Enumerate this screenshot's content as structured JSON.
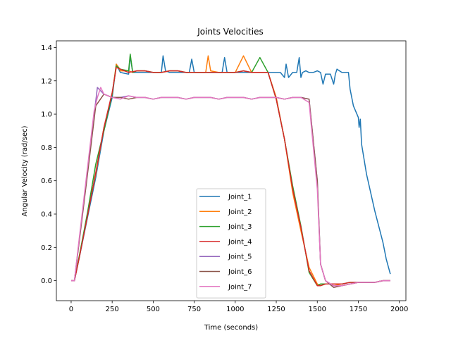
{
  "chart_data": {
    "type": "line",
    "title": "Joints Velocities",
    "xlabel": "Time (seconds)",
    "ylabel": "Angular Velocity (rad/sec)",
    "xlim": [
      -90,
      2040
    ],
    "ylim": [
      -0.12,
      1.44
    ],
    "xticks": [
      0,
      250,
      500,
      750,
      1000,
      1250,
      1500,
      1750,
      2000
    ],
    "yticks": [
      0.0,
      0.2,
      0.4,
      0.6,
      0.8,
      1.0,
      1.2,
      1.4
    ],
    "grid": false,
    "legend_position": "lower-center",
    "series": [
      {
        "name": "Joint_1",
        "color": "#1f77b4",
        "x": [
          0,
          20,
          50,
          100,
          150,
          200,
          250,
          275,
          300,
          350,
          360,
          375,
          400,
          450,
          500,
          550,
          560,
          575,
          600,
          650,
          700,
          720,
          735,
          750,
          800,
          850,
          900,
          920,
          935,
          950,
          1000,
          1050,
          1100,
          1150,
          1200,
          1250,
          1275,
          1300,
          1310,
          1325,
          1350,
          1375,
          1390,
          1400,
          1410,
          1430,
          1450,
          1475,
          1500,
          1520,
          1535,
          1550,
          1580,
          1600,
          1610,
          1620,
          1650,
          1690,
          1700,
          1720,
          1750,
          1755,
          1762,
          1770,
          1800,
          1850,
          1900,
          1920,
          1945
        ],
        "y": [
          0.0,
          0.0,
          0.14,
          0.38,
          0.62,
          0.9,
          1.1,
          1.3,
          1.25,
          1.24,
          1.35,
          1.25,
          1.25,
          1.25,
          1.25,
          1.25,
          1.35,
          1.26,
          1.25,
          1.25,
          1.25,
          1.25,
          1.33,
          1.25,
          1.25,
          1.25,
          1.25,
          1.25,
          1.34,
          1.25,
          1.25,
          1.25,
          1.25,
          1.25,
          1.25,
          1.25,
          1.25,
          1.22,
          1.3,
          1.22,
          1.25,
          1.25,
          1.34,
          1.22,
          1.25,
          1.26,
          1.25,
          1.25,
          1.26,
          1.25,
          1.18,
          1.24,
          1.24,
          1.18,
          1.24,
          1.27,
          1.25,
          1.25,
          1.15,
          1.05,
          0.98,
          0.92,
          0.97,
          0.82,
          0.64,
          0.42,
          0.23,
          0.13,
          0.04
        ]
      },
      {
        "name": "Joint_2",
        "color": "#ff7f0e",
        "x": [
          0,
          20,
          50,
          100,
          150,
          200,
          250,
          275,
          290,
          300,
          350,
          375,
          400,
          450,
          500,
          550,
          600,
          650,
          700,
          750,
          800,
          820,
          835,
          850,
          900,
          950,
          1000,
          1050,
          1100,
          1150,
          1200,
          1250,
          1300,
          1350,
          1400,
          1450,
          1500,
          1520,
          1550,
          1600,
          1650,
          1700,
          1750,
          1800,
          1850,
          1900,
          1945
        ],
        "y": [
          0.0,
          0.0,
          0.15,
          0.4,
          0.64,
          0.92,
          1.12,
          1.3,
          1.28,
          1.26,
          1.26,
          1.25,
          1.26,
          1.26,
          1.25,
          1.25,
          1.26,
          1.26,
          1.25,
          1.25,
          1.25,
          1.25,
          1.35,
          1.26,
          1.25,
          1.25,
          1.25,
          1.35,
          1.25,
          1.25,
          1.25,
          1.1,
          0.85,
          0.53,
          0.3,
          0.08,
          -0.02,
          -0.03,
          -0.02,
          -0.02,
          -0.03,
          -0.02,
          -0.01,
          -0.01,
          -0.01,
          0.0,
          0.0
        ]
      },
      {
        "name": "Joint_3",
        "color": "#2ca02c",
        "x": [
          0,
          20,
          50,
          100,
          150,
          200,
          250,
          275,
          300,
          350,
          360,
          375,
          400,
          450,
          500,
          550,
          600,
          650,
          700,
          750,
          800,
          850,
          900,
          950,
          1000,
          1050,
          1100,
          1150,
          1200,
          1250,
          1300,
          1350,
          1400,
          1450,
          1500,
          1520,
          1550,
          1600,
          1650,
          1700,
          1750,
          1800,
          1850,
          1900,
          1945
        ],
        "y": [
          0.0,
          0.0,
          0.15,
          0.41,
          0.7,
          0.9,
          1.12,
          1.29,
          1.27,
          1.26,
          1.36,
          1.25,
          1.26,
          1.26,
          1.25,
          1.25,
          1.26,
          1.26,
          1.25,
          1.25,
          1.25,
          1.25,
          1.25,
          1.25,
          1.25,
          1.26,
          1.25,
          1.34,
          1.25,
          1.09,
          0.85,
          0.57,
          0.33,
          0.05,
          -0.03,
          -0.02,
          -0.02,
          -0.02,
          -0.02,
          -0.01,
          -0.01,
          -0.01,
          -0.01,
          0.0,
          0.0
        ]
      },
      {
        "name": "Joint_4",
        "color": "#d62728",
        "x": [
          0,
          20,
          50,
          100,
          150,
          200,
          250,
          275,
          300,
          350,
          400,
          450,
          500,
          550,
          600,
          650,
          700,
          750,
          800,
          850,
          900,
          950,
          1000,
          1050,
          1100,
          1150,
          1200,
          1250,
          1300,
          1350,
          1400,
          1450,
          1500,
          1520,
          1550,
          1600,
          1650,
          1700,
          1750,
          1800,
          1850,
          1900,
          1945
        ],
        "y": [
          0.0,
          0.0,
          0.14,
          0.39,
          0.65,
          0.92,
          1.13,
          1.28,
          1.27,
          1.25,
          1.26,
          1.26,
          1.25,
          1.25,
          1.26,
          1.26,
          1.25,
          1.25,
          1.25,
          1.25,
          1.25,
          1.25,
          1.25,
          1.26,
          1.25,
          1.25,
          1.25,
          1.09,
          0.85,
          0.55,
          0.32,
          0.06,
          -0.03,
          -0.03,
          -0.02,
          -0.02,
          -0.02,
          -0.01,
          -0.01,
          -0.01,
          -0.01,
          0.0,
          0.0
        ]
      },
      {
        "name": "Joint_5",
        "color": "#9467bd",
        "x": [
          0,
          20,
          50,
          100,
          150,
          160,
          200,
          250,
          300,
          350,
          400,
          450,
          500,
          550,
          600,
          650,
          700,
          750,
          800,
          850,
          900,
          950,
          1000,
          1050,
          1100,
          1150,
          1200,
          1250,
          1300,
          1350,
          1400,
          1450,
          1500,
          1520,
          1550,
          1600,
          1650,
          1700,
          1750,
          1800,
          1850,
          1900,
          1945
        ],
        "y": [
          0.0,
          0.0,
          0.25,
          0.66,
          1.08,
          1.16,
          1.12,
          1.1,
          1.1,
          1.11,
          1.1,
          1.1,
          1.09,
          1.1,
          1.1,
          1.1,
          1.09,
          1.1,
          1.1,
          1.1,
          1.09,
          1.1,
          1.1,
          1.1,
          1.09,
          1.1,
          1.1,
          1.1,
          1.09,
          1.1,
          1.1,
          1.09,
          0.6,
          0.1,
          0.0,
          -0.04,
          -0.03,
          -0.02,
          -0.01,
          -0.01,
          -0.01,
          0.0,
          0.0
        ]
      },
      {
        "name": "Joint_6",
        "color": "#8c564b",
        "x": [
          0,
          20,
          50,
          100,
          150,
          200,
          250,
          300,
          350,
          400,
          450,
          500,
          550,
          600,
          650,
          700,
          750,
          800,
          850,
          900,
          950,
          1000,
          1050,
          1100,
          1150,
          1200,
          1250,
          1300,
          1350,
          1400,
          1450,
          1500,
          1520,
          1550,
          1600,
          1650,
          1700,
          1750,
          1800,
          1850,
          1900,
          1945
        ],
        "y": [
          0.0,
          0.0,
          0.24,
          0.64,
          1.05,
          1.12,
          1.1,
          1.1,
          1.09,
          1.1,
          1.1,
          1.09,
          1.1,
          1.1,
          1.1,
          1.09,
          1.1,
          1.1,
          1.1,
          1.09,
          1.1,
          1.1,
          1.1,
          1.09,
          1.1,
          1.1,
          1.1,
          1.09,
          1.1,
          1.1,
          1.09,
          0.6,
          0.1,
          0.0,
          -0.04,
          -0.03,
          -0.02,
          -0.01,
          -0.01,
          -0.01,
          0.0,
          0.0
        ]
      },
      {
        "name": "Joint_7",
        "color": "#e377c2",
        "x": [
          0,
          20,
          50,
          100,
          140,
          160,
          180,
          200,
          250,
          300,
          350,
          400,
          450,
          500,
          550,
          600,
          650,
          700,
          750,
          800,
          850,
          900,
          950,
          1000,
          1050,
          1100,
          1150,
          1200,
          1250,
          1300,
          1350,
          1400,
          1450,
          1500,
          1520,
          1550,
          1600,
          1650,
          1700,
          1750,
          1800,
          1850,
          1900,
          1945
        ],
        "y": [
          0.0,
          0.0,
          0.26,
          0.68,
          1.02,
          1.1,
          1.16,
          1.12,
          1.1,
          1.09,
          1.11,
          1.1,
          1.1,
          1.09,
          1.1,
          1.1,
          1.1,
          1.09,
          1.1,
          1.1,
          1.1,
          1.09,
          1.1,
          1.1,
          1.1,
          1.09,
          1.1,
          1.1,
          1.1,
          1.09,
          1.1,
          1.1,
          1.07,
          0.55,
          0.1,
          0.0,
          -0.03,
          -0.03,
          -0.02,
          -0.01,
          -0.01,
          -0.01,
          0.0,
          0.0
        ]
      }
    ]
  }
}
